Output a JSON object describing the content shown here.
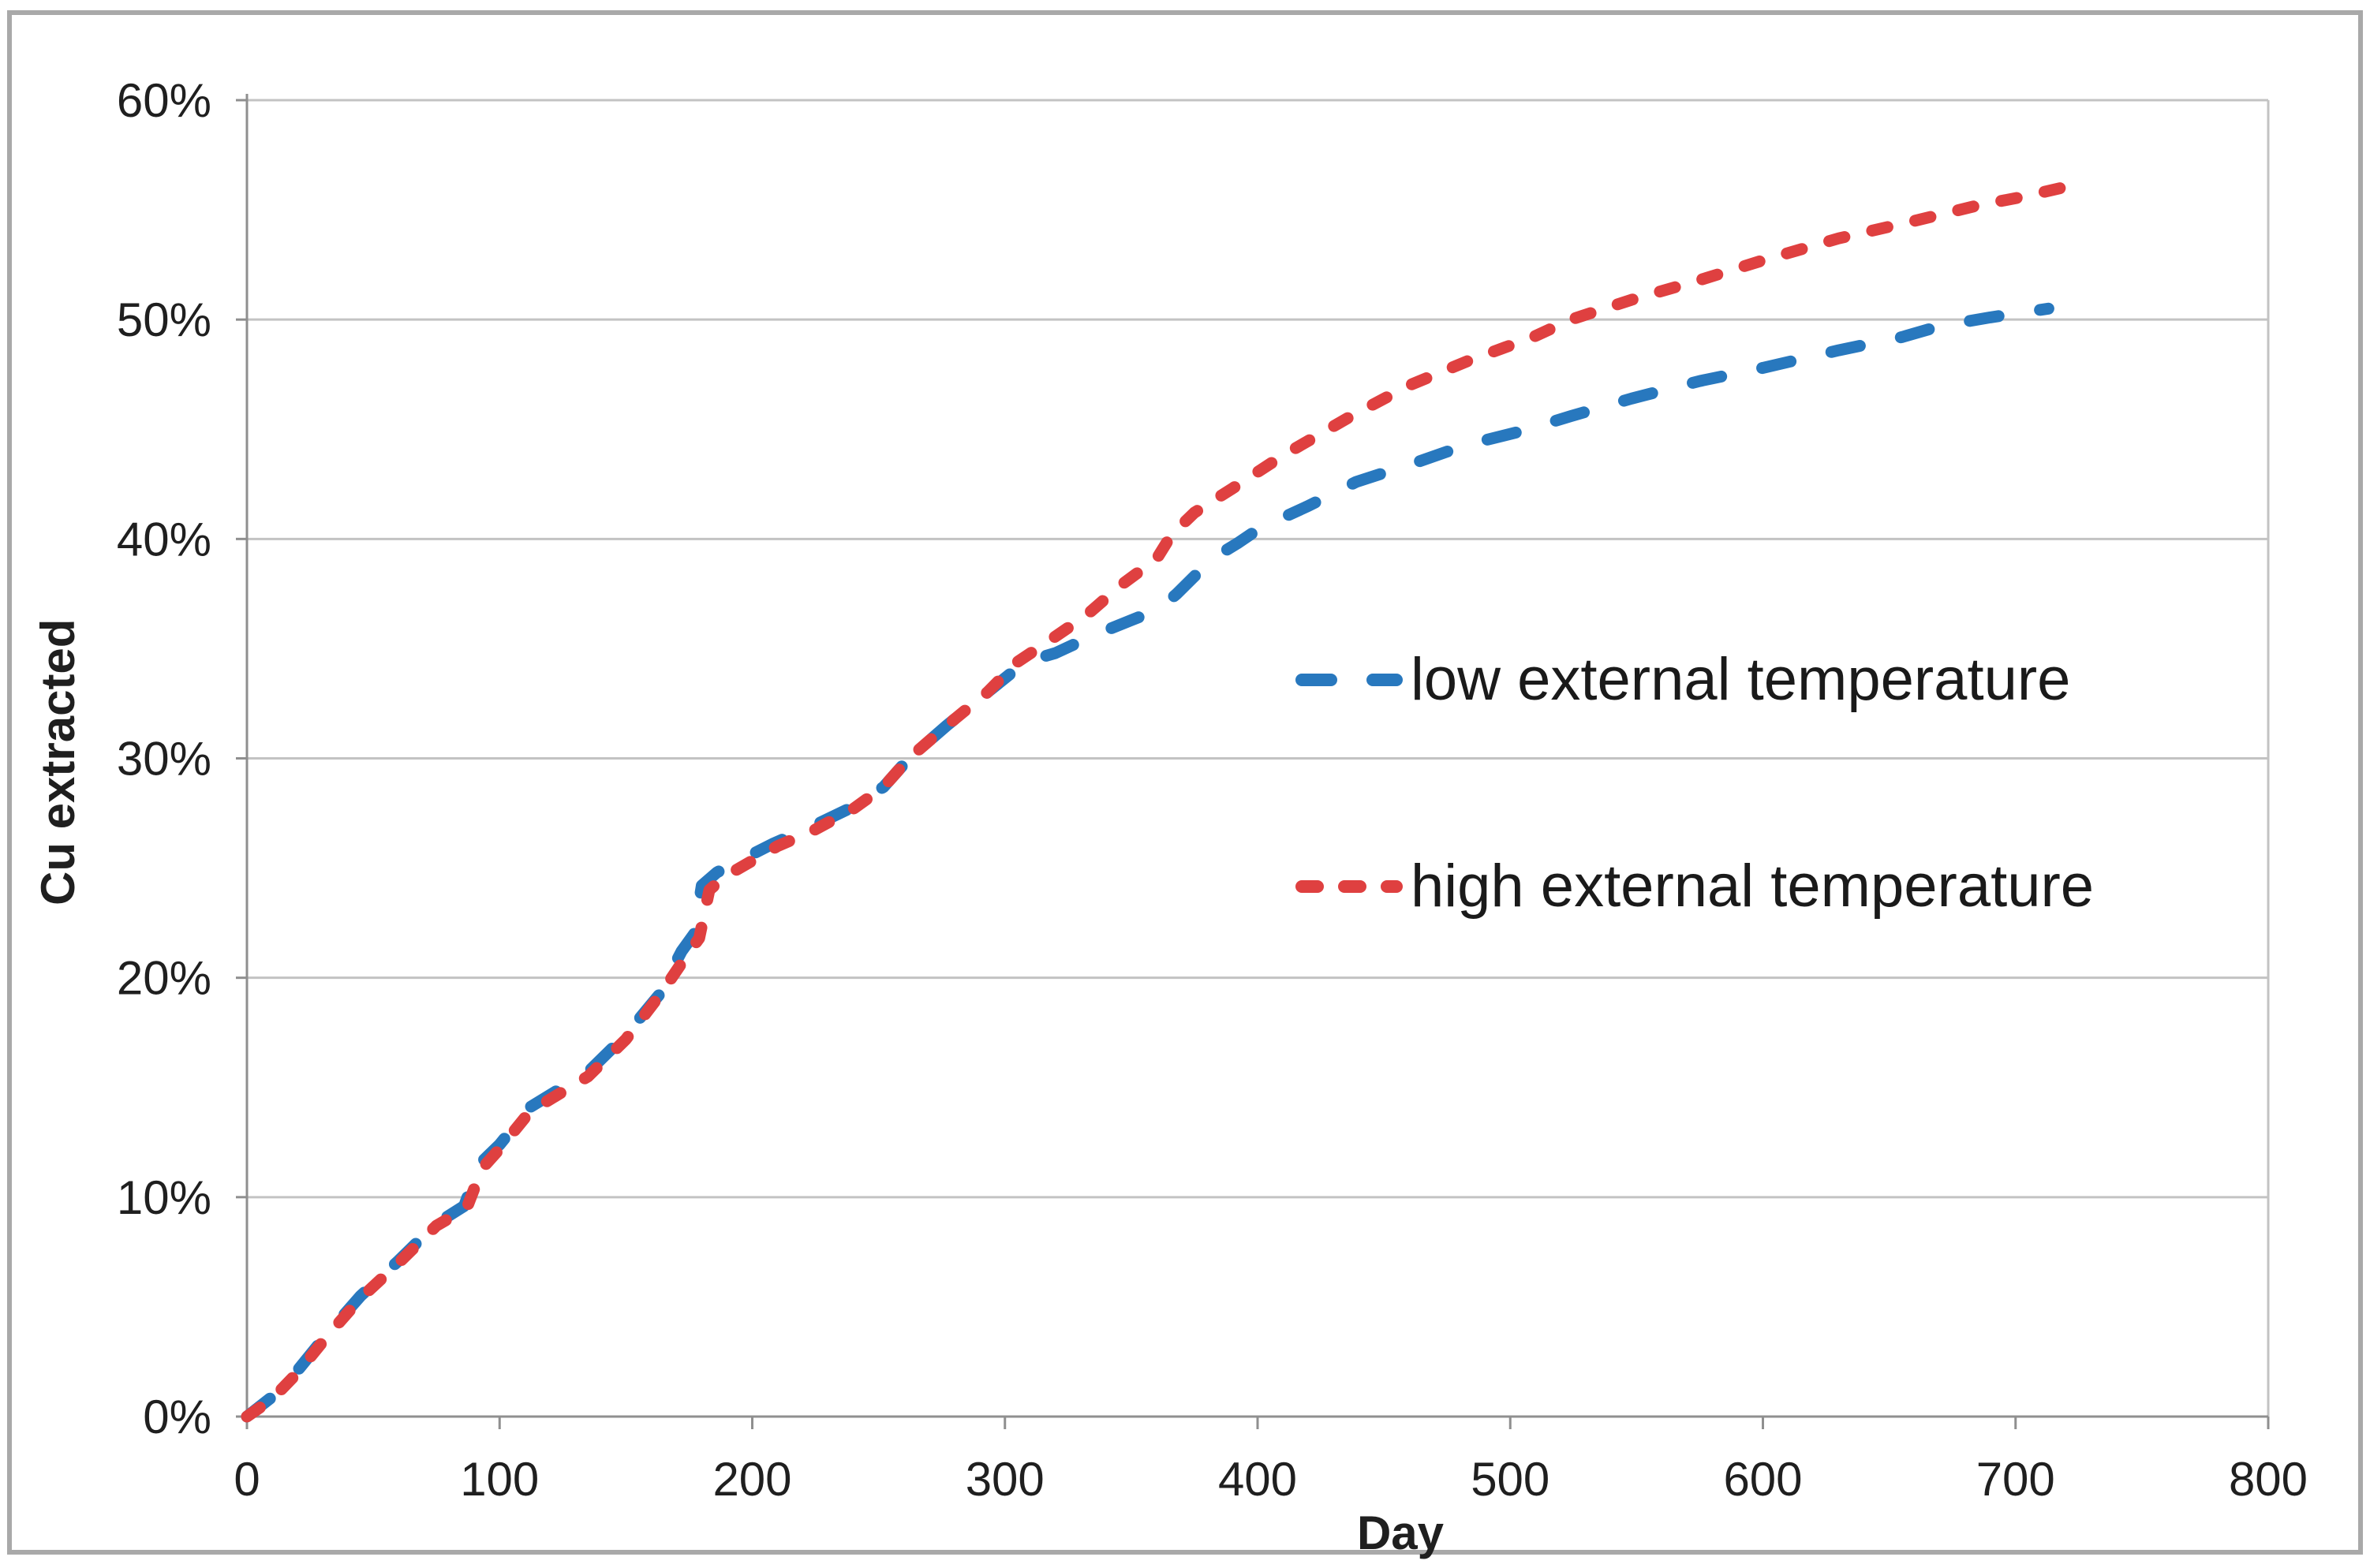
{
  "chart_data": {
    "type": "line",
    "title": "",
    "xlabel": "Day",
    "ylabel": "Cu extracted",
    "xlim": [
      0,
      800
    ],
    "ylim": [
      0,
      60
    ],
    "x_ticks": [
      0,
      100,
      200,
      300,
      400,
      500,
      600,
      700,
      800
    ],
    "y_tick_values": [
      0,
      10,
      20,
      30,
      40,
      50,
      60
    ],
    "y_tick_labels": [
      "0%",
      "10%",
      "20%",
      "30%",
      "40%",
      "50%",
      "60%"
    ],
    "grid": "horizontal gridlines at every 10%",
    "legend_position": "inside plot, center-right, no border",
    "axis_color": "#8F8F8F",
    "grid_color": "#C3C3C3",
    "tick_label_color": "#1F1F1F",
    "frame_color": "#A9A9A9",
    "series": [
      {
        "name": "low external temperature",
        "color": "#2878BE",
        "dash": "long",
        "points": [
          [
            0,
            0
          ],
          [
            10,
            0.9
          ],
          [
            20,
            2.1
          ],
          [
            32,
            3.8
          ],
          [
            45,
            5.5
          ],
          [
            60,
            7.1
          ],
          [
            75,
            8.8
          ],
          [
            86,
            9.6
          ],
          [
            92,
            11.5
          ],
          [
            100,
            12.4
          ],
          [
            112,
            14.1
          ],
          [
            122,
            14.8
          ],
          [
            135,
            15.7
          ],
          [
            150,
            17.4
          ],
          [
            163,
            19.2
          ],
          [
            172,
            21.2
          ],
          [
            177,
            22.0
          ],
          [
            180,
            24.2
          ],
          [
            186,
            24.8
          ],
          [
            196,
            25.4
          ],
          [
            208,
            26.1
          ],
          [
            222,
            26.8
          ],
          [
            240,
            27.8
          ],
          [
            252,
            28.7
          ],
          [
            262,
            30.0
          ],
          [
            277,
            31.5
          ],
          [
            293,
            33.0
          ],
          [
            308,
            34.4
          ],
          [
            320,
            34.8
          ],
          [
            335,
            35.6
          ],
          [
            350,
            36.3
          ],
          [
            361,
            36.8
          ],
          [
            368,
            37.5
          ],
          [
            382,
            39.1
          ],
          [
            392,
            39.8
          ],
          [
            401,
            40.5
          ],
          [
            420,
            41.5
          ],
          [
            439,
            42.6
          ],
          [
            463,
            43.5
          ],
          [
            483,
            44.3
          ],
          [
            504,
            44.9
          ],
          [
            524,
            45.6
          ],
          [
            548,
            46.4
          ],
          [
            575,
            47.2
          ],
          [
            600,
            47.8
          ],
          [
            630,
            48.6
          ],
          [
            655,
            49.2
          ],
          [
            670,
            49.7
          ],
          [
            690,
            50.1
          ],
          [
            713,
            50.5
          ]
        ]
      },
      {
        "name": "high external temperature",
        "color": "#DF4040",
        "dash": "short",
        "points": [
          [
            0,
            0
          ],
          [
            10,
            0.8
          ],
          [
            20,
            2.0
          ],
          [
            32,
            3.7
          ],
          [
            45,
            5.4
          ],
          [
            60,
            7.0
          ],
          [
            75,
            8.7
          ],
          [
            87,
            9.5
          ],
          [
            93,
            11.3
          ],
          [
            100,
            12.2
          ],
          [
            112,
            13.9
          ],
          [
            122,
            14.6
          ],
          [
            135,
            15.5
          ],
          [
            150,
            17.2
          ],
          [
            164,
            19.3
          ],
          [
            174,
            21.0
          ],
          [
            179,
            21.8
          ],
          [
            183,
            24.0
          ],
          [
            189,
            24.6
          ],
          [
            198,
            25.2
          ],
          [
            210,
            26.0
          ],
          [
            224,
            26.7
          ],
          [
            240,
            27.7
          ],
          [
            252,
            28.7
          ],
          [
            262,
            30.0
          ],
          [
            277,
            31.5
          ],
          [
            293,
            33.0
          ],
          [
            305,
            34.4
          ],
          [
            318,
            35.4
          ],
          [
            332,
            36.5
          ],
          [
            346,
            37.9
          ],
          [
            353,
            38.5
          ],
          [
            359,
            38.9
          ],
          [
            366,
            40.2
          ],
          [
            375,
            41.2
          ],
          [
            390,
            42.3
          ],
          [
            410,
            43.8
          ],
          [
            437,
            45.6
          ],
          [
            460,
            47.0
          ],
          [
            483,
            48.1
          ],
          [
            509,
            49.2
          ],
          [
            524,
            50.0
          ],
          [
            548,
            50.9
          ],
          [
            575,
            51.8
          ],
          [
            600,
            52.7
          ],
          [
            630,
            53.7
          ],
          [
            660,
            54.5
          ],
          [
            685,
            55.2
          ],
          [
            703,
            55.6
          ],
          [
            718,
            56.0
          ]
        ]
      }
    ]
  },
  "legend": {
    "low_label": "low external temperature",
    "high_label": "high external temperature"
  },
  "axes": {
    "x_title": "Day",
    "y_title": "Cu extracted"
  }
}
